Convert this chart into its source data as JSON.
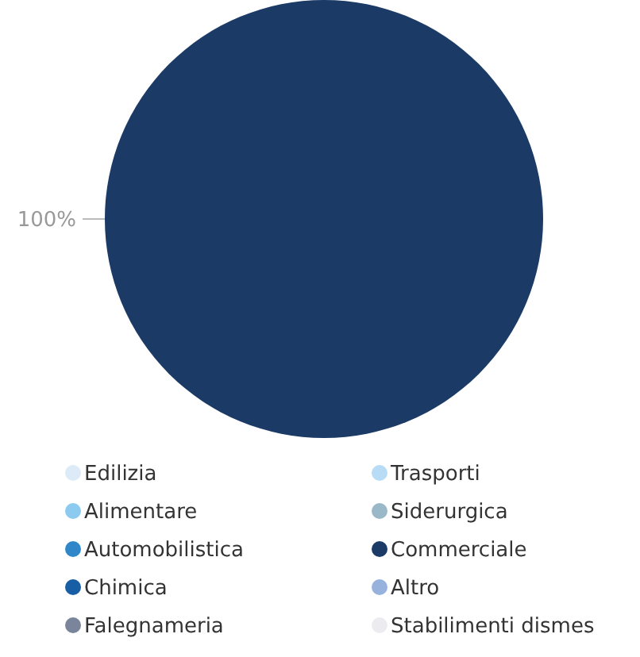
{
  "chart_data": {
    "type": "pie",
    "categories": [
      "Edilizia",
      "Alimentare",
      "Automobilistica",
      "Chimica",
      "Falegnameria",
      "Trasporti",
      "Siderurgica",
      "Commerciale",
      "Altro",
      "Stabilimenti dismes"
    ],
    "values": [
      0,
      0,
      0,
      0,
      0,
      0,
      0,
      100,
      0,
      0
    ],
    "colors": [
      "#dcebf7",
      "#8ccbef",
      "#2f86c8",
      "#175ea5",
      "#7a849a",
      "#b8dcf5",
      "#9ab8c8",
      "#1b3a66",
      "#98b2de",
      "#ececf0"
    ],
    "value_labels": [
      null,
      null,
      null,
      null,
      null,
      null,
      null,
      "100%",
      null,
      null
    ],
    "legend": "bottom"
  }
}
